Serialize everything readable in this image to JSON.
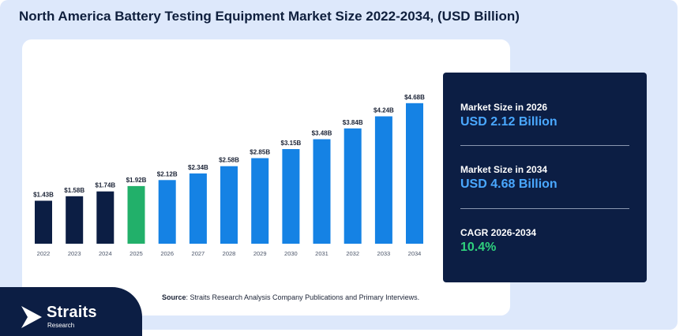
{
  "title": "North America Battery Testing Equipment Market Size 2022-2034, (USD Billion)",
  "source": {
    "label": "Source",
    "text": ": Straits Research Analysis Company Publications and Primary Interviews."
  },
  "brand": {
    "name": "Straits",
    "sub": "Research"
  },
  "stats": [
    {
      "label": "Market Size in 2026",
      "value": "USD 2.12 Billion"
    },
    {
      "label": "Market Size in 2034",
      "value": "USD 4.68 Billion"
    },
    {
      "label": "CAGR 2026-2034",
      "value": "10.4%"
    }
  ],
  "colors": {
    "historical": "#0c1e44",
    "base_year": "#22b06a",
    "forecast": "#1582e4",
    "accent_blue": "#4aa8ff",
    "accent_green": "#2fd17d"
  },
  "chart_data": {
    "type": "bar",
    "categories": [
      "2022",
      "2023",
      "2024",
      "2025",
      "2026",
      "2027",
      "2028",
      "2029",
      "2030",
      "2031",
      "2032",
      "2033",
      "2034"
    ],
    "values": [
      1.43,
      1.58,
      1.74,
      1.92,
      2.12,
      2.34,
      2.58,
      2.85,
      3.15,
      3.48,
      3.84,
      4.24,
      4.68
    ],
    "labels": [
      "$1.43B",
      "$1.58B",
      "$1.74B",
      "$1.92B",
      "$2.12B",
      "$2.34B",
      "$2.58B",
      "$2.85B",
      "$3.15B",
      "$3.48B",
      "$3.84B",
      "$4.24B",
      "$4.68B"
    ],
    "bar_colors": [
      "historical",
      "historical",
      "historical",
      "base_year",
      "forecast",
      "forecast",
      "forecast",
      "forecast",
      "forecast",
      "forecast",
      "forecast",
      "forecast",
      "forecast"
    ],
    "title": "",
    "xlabel": "",
    "ylabel": "",
    "ylim": [
      0,
      4.7
    ],
    "grid": false
  }
}
